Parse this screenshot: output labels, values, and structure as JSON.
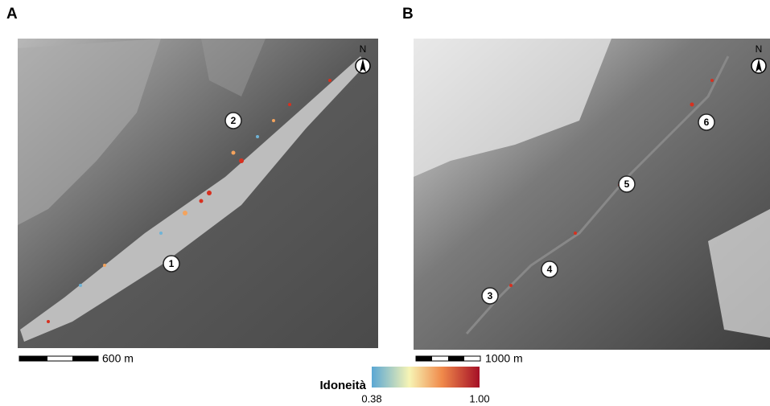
{
  "panels": [
    {
      "label": "A",
      "north": "N",
      "markers": [
        "1",
        "2"
      ],
      "scale": "600 m"
    },
    {
      "label": "B",
      "north": "N",
      "markers": [
        "3",
        "4",
        "5",
        "6"
      ],
      "scale": "1000 m"
    }
  ],
  "legend": {
    "title": "Idoneità",
    "min": "0.38",
    "max": "1.00"
  }
}
